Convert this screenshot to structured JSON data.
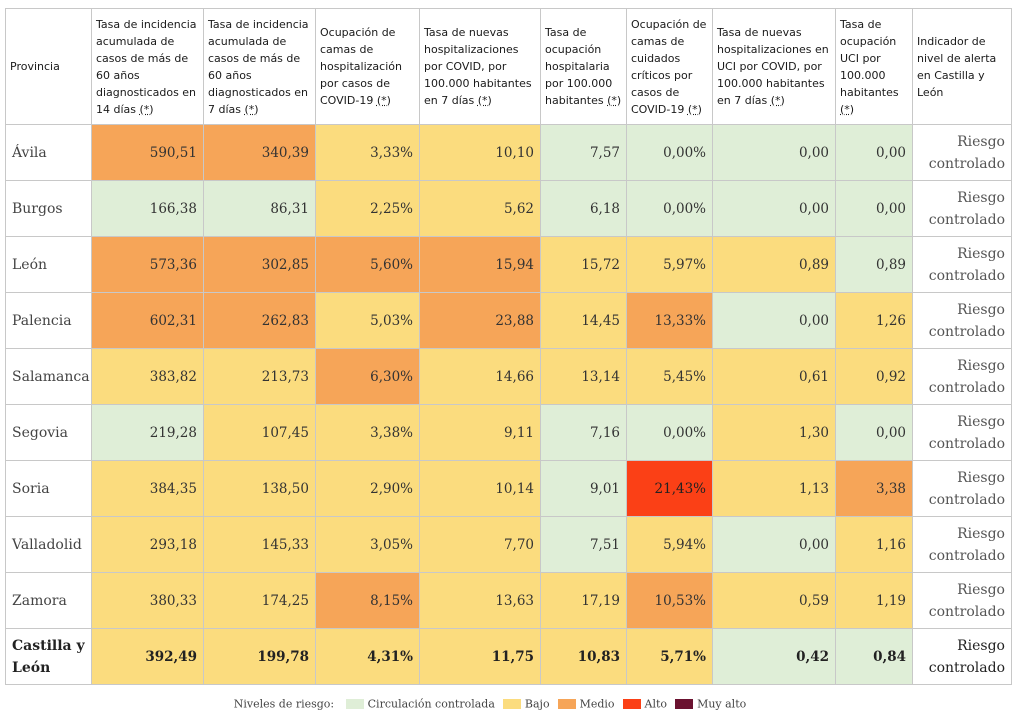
{
  "headers": [
    "Provincia",
    "Tasa de incidencia acumulada de casos de más de 60 años diagnosticados en 14 días",
    "Tasa de incidencia acumulada de casos de más de 60 años diagnosticados en 7 días",
    "Ocupación de camas de hospitalización por casos de COVID-19",
    "Tasa de nuevas hospitalizaciones por COVID, por 100.000 habitantes en 7 días",
    "Tasa de ocupación hospitalaria por 100.000 habitantes",
    "Ocupación de camas de cuidados críticos por casos de COVID-19",
    "Tasa de nuevas hospitalizaciones en UCI por COVID, por 100.000 habitantes en 7 días",
    "Tasa de ocupación UCI por 100.000 habitantes",
    "Indicador de nivel de alerta en Castilla y León"
  ],
  "asterisk": "(*)",
  "rows": [
    {
      "province": "Ávila",
      "values": [
        "590,51",
        "340,39",
        "3,33%",
        "10,10",
        "7,57",
        "0,00%",
        "0,00",
        "0,00"
      ],
      "level": "Riesgo controlado",
      "colors": [
        "orange",
        "orange",
        "yellow",
        "yellow",
        "green",
        "green",
        "green",
        "green"
      ]
    },
    {
      "province": "Burgos",
      "values": [
        "166,38",
        "86,31",
        "2,25%",
        "5,62",
        "6,18",
        "0,00%",
        "0,00",
        "0,00"
      ],
      "level": "Riesgo controlado",
      "colors": [
        "green",
        "green",
        "yellow",
        "yellow",
        "green",
        "green",
        "green",
        "green"
      ]
    },
    {
      "province": "León",
      "values": [
        "573,36",
        "302,85",
        "5,60%",
        "15,94",
        "15,72",
        "5,97%",
        "0,89",
        "0,89"
      ],
      "level": "Riesgo controlado",
      "colors": [
        "orange",
        "orange",
        "orange",
        "orange",
        "yellow",
        "yellow",
        "yellow",
        "green"
      ]
    },
    {
      "province": "Palencia",
      "values": [
        "602,31",
        "262,83",
        "5,03%",
        "23,88",
        "14,45",
        "13,33%",
        "0,00",
        "1,26"
      ],
      "level": "Riesgo controlado",
      "colors": [
        "orange",
        "orange",
        "yellow",
        "orange",
        "yellow",
        "orange",
        "green",
        "yellow"
      ]
    },
    {
      "province": "Salamanca",
      "values": [
        "383,82",
        "213,73",
        "6,30%",
        "14,66",
        "13,14",
        "5,45%",
        "0,61",
        "0,92"
      ],
      "level": "Riesgo controlado",
      "colors": [
        "yellow",
        "yellow",
        "orange",
        "yellow",
        "yellow",
        "yellow",
        "yellow",
        "yellow"
      ]
    },
    {
      "province": "Segovia",
      "values": [
        "219,28",
        "107,45",
        "3,38%",
        "9,11",
        "7,16",
        "0,00%",
        "1,30",
        "0,00"
      ],
      "level": "Riesgo controlado",
      "colors": [
        "green",
        "yellow",
        "yellow",
        "yellow",
        "green",
        "green",
        "yellow",
        "green"
      ]
    },
    {
      "province": "Soria",
      "values": [
        "384,35",
        "138,50",
        "2,90%",
        "10,14",
        "9,01",
        "21,43%",
        "1,13",
        "3,38"
      ],
      "level": "Riesgo controlado",
      "colors": [
        "yellow",
        "yellow",
        "yellow",
        "yellow",
        "green",
        "red",
        "yellow",
        "orange"
      ]
    },
    {
      "province": "Valladolid",
      "values": [
        "293,18",
        "145,33",
        "3,05%",
        "7,70",
        "7,51",
        "5,94%",
        "0,00",
        "1,16"
      ],
      "level": "Riesgo controlado",
      "colors": [
        "yellow",
        "yellow",
        "yellow",
        "yellow",
        "green",
        "yellow",
        "green",
        "yellow"
      ]
    },
    {
      "province": "Zamora",
      "values": [
        "380,33",
        "174,25",
        "8,15%",
        "13,63",
        "17,19",
        "10,53%",
        "0,59",
        "1,19"
      ],
      "level": "Riesgo controlado",
      "colors": [
        "yellow",
        "yellow",
        "orange",
        "yellow",
        "yellow",
        "orange",
        "yellow",
        "yellow"
      ]
    }
  ],
  "total": {
    "province": "Castilla y León",
    "values": [
      "392,49",
      "199,78",
      "4,31%",
      "11,75",
      "10,83",
      "5,71%",
      "0,42",
      "0,84"
    ],
    "level": "Riesgo controlado",
    "colors": [
      "yellow",
      "yellow",
      "yellow",
      "yellow",
      "yellow",
      "yellow",
      "green",
      "green"
    ]
  },
  "legend": {
    "title": "Niveles de riesgo:",
    "items": [
      {
        "label": "Circulación controlada",
        "color": "#dfeed7"
      },
      {
        "label": "Bajo",
        "color": "#fbdc7e"
      },
      {
        "label": "Medio",
        "color": "#f6a558"
      },
      {
        "label": "Alto",
        "color": "#fb4016"
      },
      {
        "label": "Muy alto",
        "color": "#6b1230"
      }
    ]
  }
}
